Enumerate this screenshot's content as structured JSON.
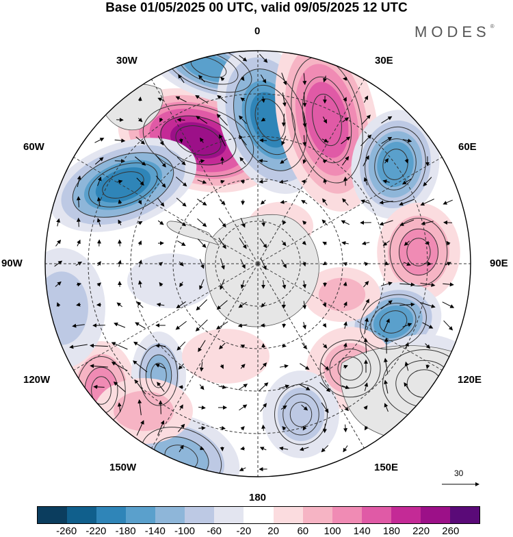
{
  "header": {
    "title": "Base 01/05/2025 00 UTC, valid 09/05/2025 12 UTC",
    "logo_text": "MODES",
    "logo_mark": "®"
  },
  "map": {
    "projection": "south-polar-stereographic",
    "meridian_labels": {
      "m0": "0",
      "m30e": "30E",
      "m60e": "60E",
      "m90e": "90E",
      "m120e": "120E",
      "m150e": "150E",
      "m180": "180",
      "m150w": "150W",
      "m120w": "120W",
      "m90w": "90W",
      "m60w": "60W",
      "m30w": "30W"
    },
    "reference_vector": "30",
    "colors": {
      "land": "#e6e6e6",
      "coast": "#555555",
      "background": "#ffffff"
    }
  },
  "colorbar": {
    "colors": [
      "#0b3d5e",
      "#105f8c",
      "#2f85b8",
      "#5aa0cc",
      "#8eb6d9",
      "#bdc9e4",
      "#e3e5f0",
      "#ffffff",
      "#fbdcdf",
      "#f6b4c4",
      "#f08bb4",
      "#e05aa6",
      "#c42a96",
      "#9c1088",
      "#5a0a78"
    ],
    "ticks": [
      "-260",
      "-220",
      "-180",
      "-140",
      "-100",
      "-60",
      "-20",
      "20",
      "60",
      "100",
      "140",
      "180",
      "220",
      "260"
    ]
  }
}
